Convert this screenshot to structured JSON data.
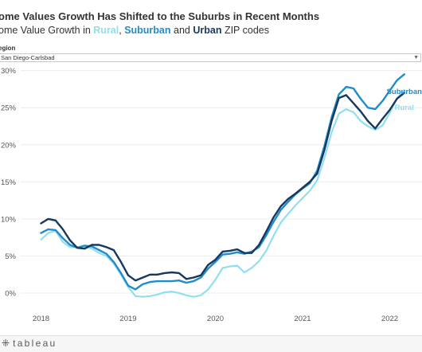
{
  "header": {
    "title": "ome Values Growth Has Shifted to the Suburbs in Recent Months",
    "subtitle_parts": [
      "ome Value Growth in ",
      "Rural",
      ", ",
      "Suburban",
      " and ",
      "Urban",
      " ZIP codes"
    ]
  },
  "filter": {
    "label": "egion",
    "value": "San Diego-Carlsbad"
  },
  "footer": {
    "logo_mark": "⁜",
    "logo_text": "tableau"
  },
  "colors": {
    "rural": "#8fdfee",
    "suburban": "#1f8ccb",
    "urban": "#17375e",
    "grid": "#ececec",
    "tick_text": "#555555"
  },
  "chart_data": {
    "type": "line",
    "title": "",
    "xlabel": "",
    "ylabel": "",
    "x": [
      "2018-01",
      "2018-02",
      "2018-03",
      "2018-04",
      "2018-05",
      "2018-06",
      "2018-07",
      "2018-08",
      "2018-09",
      "2018-10",
      "2018-11",
      "2018-12",
      "2019-01",
      "2019-02",
      "2019-03",
      "2019-04",
      "2019-05",
      "2019-06",
      "2019-07",
      "2019-08",
      "2019-09",
      "2019-10",
      "2019-11",
      "2019-12",
      "2020-01",
      "2020-02",
      "2020-03",
      "2020-04",
      "2020-05",
      "2020-06",
      "2020-07",
      "2020-08",
      "2020-09",
      "2020-10",
      "2020-11",
      "2020-12",
      "2021-01",
      "2021-02",
      "2021-03",
      "2021-04",
      "2021-05",
      "2021-06",
      "2021-07",
      "2021-08",
      "2021-09",
      "2021-10",
      "2021-11",
      "2021-12",
      "2022-01",
      "2022-02",
      "2022-03"
    ],
    "x_ticks": [
      "2018",
      "2019",
      "2020",
      "2021",
      "2022"
    ],
    "y_ticks": [
      "0%",
      "5%",
      "10%",
      "15%",
      "20%",
      "25%",
      "30%"
    ],
    "ylim": [
      -1.5,
      30.5
    ],
    "grid": true,
    "series": [
      {
        "name": "Rural",
        "values": [
          7.2,
          8.1,
          8.4,
          6.9,
          6.2,
          6.2,
          6.3,
          6.0,
          5.4,
          5.0,
          4.0,
          2.5,
          0.8,
          -0.4,
          -0.5,
          -0.4,
          -0.2,
          0.1,
          0.2,
          0.0,
          -0.3,
          -0.5,
          -0.3,
          0.5,
          1.8,
          3.4,
          3.6,
          3.7,
          2.8,
          3.4,
          4.3,
          5.7,
          7.7,
          9.5,
          10.7,
          11.8,
          12.8,
          13.8,
          15.2,
          18.2,
          21.7,
          24.2,
          24.8,
          24.4,
          23.2,
          22.5,
          22.0,
          22.6,
          24.3,
          26.3,
          27.4
        ],
        "label": "Rural",
        "label_visible": true
      },
      {
        "name": "Suburban",
        "values": [
          8.1,
          8.6,
          8.5,
          7.4,
          6.5,
          6.1,
          6.4,
          6.3,
          5.8,
          5.3,
          4.2,
          2.7,
          1.0,
          0.5,
          1.2,
          1.5,
          1.6,
          1.6,
          1.6,
          1.7,
          1.4,
          1.6,
          2.1,
          3.3,
          4.2,
          5.2,
          5.3,
          5.5,
          5.3,
          5.6,
          6.2,
          7.8,
          9.6,
          11.2,
          12.3,
          13.3,
          14.1,
          14.8,
          16.5,
          19.8,
          23.7,
          26.8,
          27.8,
          27.6,
          26.2,
          25.0,
          24.8,
          25.9,
          27.3,
          28.7,
          29.5
        ],
        "label": "Suburban",
        "label_visible": true
      },
      {
        "name": "Urban",
        "values": [
          9.4,
          10.0,
          9.8,
          8.6,
          7.1,
          6.1,
          6.0,
          6.5,
          6.5,
          6.2,
          5.8,
          4.2,
          2.4,
          1.7,
          2.1,
          2.5,
          2.5,
          2.7,
          2.8,
          2.7,
          1.9,
          2.1,
          2.4,
          3.8,
          4.5,
          5.6,
          5.7,
          5.9,
          5.4,
          5.4,
          6.5,
          8.3,
          10.2,
          11.7,
          12.7,
          13.4,
          14.2,
          15.0,
          16.1,
          19.3,
          23.2,
          26.3,
          26.7,
          25.6,
          24.5,
          23.2,
          22.2,
          23.5,
          24.7,
          26.2,
          27.0
        ],
        "label": "",
        "label_visible": false
      }
    ]
  }
}
